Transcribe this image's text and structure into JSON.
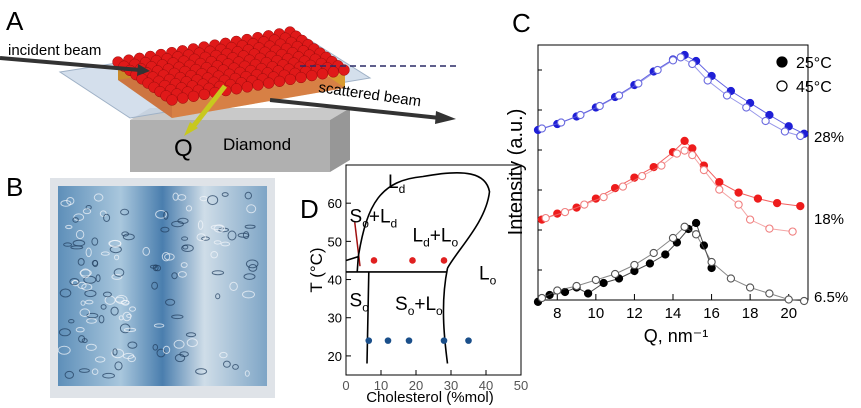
{
  "panels": {
    "A": {
      "letter": "A",
      "incident": "incident beam",
      "scattered": "scattered beam",
      "q": "Q",
      "substrate": "Diamond"
    },
    "B": {
      "letter": "B"
    },
    "C": {
      "letter": "C"
    },
    "D": {
      "letter": "D"
    }
  },
  "chart_data": [
    {
      "type": "scatter",
      "panel": "C",
      "xlabel": "Q, nm⁻¹",
      "ylabel": "Intensity (a.u.)",
      "xlim": [
        7,
        21
      ],
      "xticks": [
        8,
        10,
        12,
        14,
        16,
        18,
        20
      ],
      "legend": {
        "placement": "top-right",
        "entries": [
          "25°C",
          "45°C"
        ]
      },
      "series": [
        {
          "name": "25°C",
          "label": "28%",
          "color": "#1f1fd6",
          "filled": true,
          "offset": 0.0,
          "x": [
            7.0,
            8.0,
            9.0,
            10.0,
            11.0,
            12.0,
            13.0,
            14.0,
            14.6,
            15.2,
            16.0,
            17.0,
            18.0,
            19.0,
            20.0,
            20.8
          ],
          "y": [
            0.0,
            0.08,
            0.18,
            0.3,
            0.44,
            0.6,
            0.78,
            0.94,
            1.0,
            0.92,
            0.72,
            0.52,
            0.36,
            0.2,
            0.05,
            -0.05
          ]
        },
        {
          "name": "45°C",
          "label": "28%",
          "color": "#6a6adf",
          "filled": false,
          "offset": 0.0,
          "x": [
            7.2,
            8.2,
            9.2,
            10.2,
            11.2,
            12.2,
            13.2,
            14.0,
            14.4,
            15.0,
            15.8,
            16.8,
            17.8,
            18.8,
            19.8,
            20.6
          ],
          "y": [
            0.02,
            0.1,
            0.2,
            0.32,
            0.46,
            0.62,
            0.8,
            0.93,
            0.97,
            0.88,
            0.66,
            0.46,
            0.3,
            0.12,
            -0.02,
            -0.08
          ]
        },
        {
          "name": "25°C",
          "label": "18%",
          "color": "#ee1c1c",
          "filled": true,
          "offset": -1.6,
          "x": [
            7.2,
            8.0,
            9.0,
            10.0,
            11.0,
            12.0,
            13.0,
            14.0,
            14.6,
            15.0,
            15.6,
            16.4,
            17.4,
            18.4,
            19.4,
            20.6
          ],
          "y": [
            0.0,
            0.08,
            0.16,
            0.28,
            0.42,
            0.56,
            0.7,
            0.9,
            1.05,
            0.95,
            0.72,
            0.5,
            0.36,
            0.28,
            0.22,
            0.18
          ]
        },
        {
          "name": "45°C",
          "label": "18%",
          "color": "#f08080",
          "filled": false,
          "offset": -1.6,
          "x": [
            7.4,
            8.4,
            9.4,
            10.4,
            11.4,
            12.4,
            13.4,
            14.2,
            14.6,
            15.0,
            15.6,
            16.4,
            17.4,
            18.0,
            19.0,
            20.2
          ],
          "y": [
            0.02,
            0.1,
            0.2,
            0.3,
            0.44,
            0.58,
            0.72,
            0.88,
            0.92,
            0.86,
            0.66,
            0.4,
            0.2,
            0.0,
            -0.12,
            -0.16
          ]
        },
        {
          "name": "25°C",
          "label": "6.5%",
          "color": "#000000",
          "filled": true,
          "offset": -3.0,
          "x": [
            7.0,
            7.6,
            8.4,
            9.0,
            9.6,
            10.4,
            11.2,
            12.0,
            12.8,
            13.6,
            14.2,
            14.8,
            15.2,
            15.6,
            16.0
          ],
          "y": [
            -0.05,
            0.04,
            0.08,
            0.14,
            0.06,
            0.2,
            0.26,
            0.36,
            0.46,
            0.58,
            0.74,
            0.92,
            1.0,
            0.7,
            0.4
          ]
        },
        {
          "name": "45°C",
          "label": "6.5%",
          "color": "#555555",
          "filled": false,
          "offset": -3.0,
          "x": [
            7.2,
            8.0,
            9.0,
            10.0,
            11.0,
            12.0,
            13.0,
            14.0,
            14.6,
            15.2,
            16.0,
            17.0,
            18.0,
            19.0,
            20.0,
            20.8
          ],
          "y": [
            0.0,
            0.1,
            0.16,
            0.24,
            0.32,
            0.44,
            0.6,
            0.8,
            0.95,
            0.85,
            0.48,
            0.26,
            0.14,
            0.06,
            -0.02,
            -0.04
          ]
        }
      ],
      "annotations": [
        "28%",
        "18%",
        "6.5%"
      ]
    },
    {
      "type": "scatter",
      "panel": "D",
      "xlabel": "Cholesterol (%mol)",
      "ylabel": "T (°C)",
      "xlim": [
        0,
        50
      ],
      "ylim": [
        15,
        70
      ],
      "xticks": [
        0,
        10,
        20,
        30,
        40,
        50
      ],
      "yticks": [
        20,
        30,
        40,
        50,
        60
      ],
      "regions": [
        {
          "label_main": "L",
          "label_sub": "d",
          "x": 12,
          "y": 64
        },
        {
          "label_main": "S",
          "label_sub": "o",
          "label_tail": "+L",
          "label_tail_sub": "d",
          "x": 1,
          "y": 55
        },
        {
          "label_main": "L",
          "label_sub": "d",
          "label_tail": "+L",
          "label_tail_sub": "o",
          "x": 19,
          "y": 50
        },
        {
          "label_main": "L",
          "label_sub": "o",
          "x": 38,
          "y": 40
        },
        {
          "label_main": "S",
          "label_sub": "o",
          "x": 1,
          "y": 33
        },
        {
          "label_main": "S",
          "label_sub": "o",
          "label_tail": "+L",
          "label_tail_sub": "o",
          "x": 14,
          "y": 32
        }
      ],
      "points_45C": {
        "color": "#e02020",
        "x": [
          8,
          19,
          28
        ],
        "y": [
          45,
          45,
          45
        ]
      },
      "points_25C": {
        "color": "#1a4f8a",
        "x": [
          6.5,
          12,
          18,
          28,
          35
        ],
        "y": [
          24,
          24,
          24,
          24,
          24
        ]
      }
    }
  ]
}
